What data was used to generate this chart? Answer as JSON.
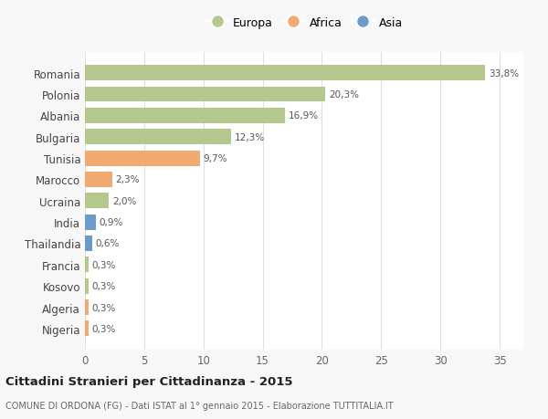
{
  "categories": [
    "Romania",
    "Polonia",
    "Albania",
    "Bulgaria",
    "Tunisia",
    "Marocco",
    "Ucraina",
    "India",
    "Thailandia",
    "Francia",
    "Kosovo",
    "Algeria",
    "Nigeria"
  ],
  "values": [
    33.8,
    20.3,
    16.9,
    12.3,
    9.7,
    2.3,
    2.0,
    0.9,
    0.6,
    0.3,
    0.3,
    0.3,
    0.3
  ],
  "labels": [
    "33,8%",
    "20,3%",
    "16,9%",
    "12,3%",
    "9,7%",
    "2,3%",
    "2,0%",
    "0,9%",
    "0,6%",
    "0,3%",
    "0,3%",
    "0,3%",
    "0,3%"
  ],
  "continents": [
    "Europa",
    "Europa",
    "Europa",
    "Europa",
    "Africa",
    "Africa",
    "Europa",
    "Asia",
    "Asia",
    "Europa",
    "Europa",
    "Africa",
    "Africa"
  ],
  "colors": {
    "Europa": "#b5c98e",
    "Africa": "#f0aa72",
    "Asia": "#6b9bc8"
  },
  "legend_labels": [
    "Europa",
    "Africa",
    "Asia"
  ],
  "legend_colors": [
    "#b5c98e",
    "#f0aa72",
    "#6b9bc8"
  ],
  "title": "Cittadini Stranieri per Cittadinanza - 2015",
  "subtitle": "COMUNE DI ORDONA (FG) - Dati ISTAT al 1° gennaio 2015 - Elaborazione TUTTITALIA.IT",
  "xlim": [
    0,
    37
  ],
  "xticks": [
    0,
    5,
    10,
    15,
    20,
    25,
    30,
    35
  ],
  "background_color": "#f8f8f8",
  "bar_background": "#ffffff",
  "grid_color": "#e0e0e0"
}
